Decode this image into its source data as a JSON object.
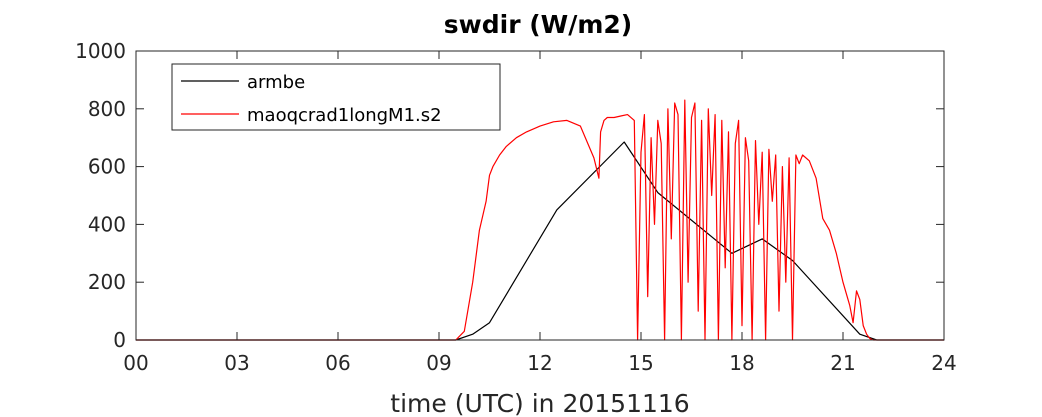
{
  "chart_data": {
    "type": "line",
    "title": "swdir  (W/m2)",
    "xlabel": "time (UTC) in 20151116",
    "ylabel": "",
    "xlim": [
      0,
      24
    ],
    "ylim": [
      0,
      1000
    ],
    "x_ticks": [
      0,
      3,
      6,
      9,
      12,
      15,
      18,
      21,
      24
    ],
    "x_tick_labels": [
      "00",
      "03",
      "06",
      "09",
      "12",
      "15",
      "18",
      "21",
      "24"
    ],
    "y_ticks": [
      0,
      200,
      400,
      600,
      800,
      1000
    ],
    "y_tick_labels": [
      "0",
      "200",
      "400",
      "600",
      "800",
      "1000"
    ],
    "grid": false,
    "legend": {
      "position": "top-left",
      "entries": [
        "armbe",
        "maoqcrad1longM1.s2"
      ]
    },
    "series": [
      {
        "name": "armbe",
        "color": "#000000",
        "x": [
          0,
          9.5,
          10,
          10.5,
          12.5,
          14.5,
          15.5,
          17.7,
          18.6,
          19.5,
          21.5,
          22,
          24
        ],
        "y": [
          0,
          0,
          20,
          60,
          450,
          685,
          510,
          300,
          350,
          275,
          20,
          0,
          0
        ]
      },
      {
        "name": "maoqcrad1longM1.s2",
        "color": "#ff0000",
        "x": [
          0,
          9.5,
          9.75,
          10,
          10.2,
          10.4,
          10.5,
          10.6,
          10.8,
          11,
          11.3,
          11.6,
          12,
          12.4,
          12.8,
          13.2,
          13.6,
          13.75,
          13.8,
          13.9,
          14,
          14.2,
          14.4,
          14.6,
          14.8,
          14.9,
          15.0,
          15.1,
          15.2,
          15.3,
          15.4,
          15.5,
          15.6,
          15.7,
          15.8,
          15.9,
          16.0,
          16.1,
          16.2,
          16.3,
          16.4,
          16.5,
          16.6,
          16.7,
          16.8,
          16.9,
          17.0,
          17.1,
          17.2,
          17.3,
          17.4,
          17.5,
          17.6,
          17.7,
          17.8,
          17.9,
          18.0,
          18.1,
          18.2,
          18.3,
          18.4,
          18.5,
          18.6,
          18.7,
          18.8,
          18.9,
          19.0,
          19.1,
          19.2,
          19.3,
          19.4,
          19.5,
          19.6,
          19.7,
          19.8,
          20.0,
          20.2,
          20.4,
          20.6,
          20.8,
          21.0,
          21.2,
          21.3,
          21.4,
          21.5,
          21.6,
          21.7,
          21.8,
          21.9,
          22.0,
          22.1,
          22.2,
          22.4,
          24
        ],
        "y": [
          0,
          0,
          30,
          200,
          380,
          480,
          570,
          600,
          640,
          670,
          700,
          720,
          740,
          755,
          760,
          740,
          630,
          560,
          720,
          760,
          770,
          770,
          775,
          780,
          760,
          0,
          650,
          780,
          150,
          700,
          400,
          760,
          680,
          0,
          800,
          350,
          820,
          780,
          0,
          830,
          200,
          770,
          820,
          100,
          760,
          0,
          800,
          500,
          780,
          0,
          760,
          250,
          720,
          0,
          680,
          760,
          50,
          700,
          620,
          0,
          690,
          400,
          650,
          0,
          660,
          480,
          640,
          100,
          600,
          200,
          630,
          0,
          640,
          610,
          640,
          620,
          560,
          420,
          380,
          300,
          200,
          120,
          60,
          170,
          140,
          50,
          20,
          5,
          0,
          0,
          0,
          0,
          0,
          0
        ]
      }
    ]
  }
}
